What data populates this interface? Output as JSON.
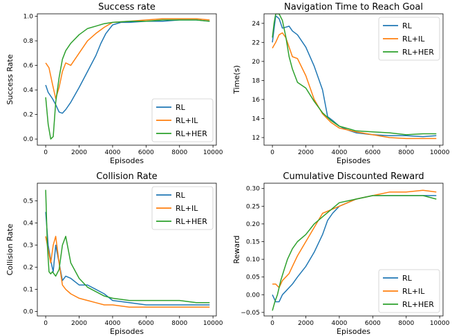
{
  "colors": {
    "RL": "#1f77b4",
    "RL+IL": "#ff7f0e",
    "RL+HER": "#2ca02c"
  },
  "chart_data": [
    {
      "type": "line",
      "title": "Success rate",
      "xlabel": "Episodes",
      "ylabel": "Success Rate",
      "xlim": [
        -500,
        10200
      ],
      "ylim": [
        -0.05,
        1.02
      ],
      "xticks": [
        0,
        2000,
        4000,
        6000,
        8000,
        10000
      ],
      "yticks": [
        0.0,
        0.2,
        0.4,
        0.6,
        0.8,
        1.0
      ],
      "ytick_labels": [
        "0.0",
        "0.2",
        "0.4",
        "0.6",
        "0.8",
        "1.0"
      ],
      "legend_position": "lower-right",
      "series": [
        {
          "name": "RL",
          "x": [
            0,
            150,
            400,
            600,
            800,
            1000,
            1200,
            1500,
            2000,
            2500,
            3000,
            3300,
            3600,
            4000,
            4500,
            5000,
            6000,
            7000,
            8000,
            9000,
            9800
          ],
          "y": [
            0.44,
            0.38,
            0.33,
            0.28,
            0.22,
            0.21,
            0.24,
            0.3,
            0.42,
            0.55,
            0.68,
            0.78,
            0.86,
            0.93,
            0.95,
            0.95,
            0.96,
            0.96,
            0.97,
            0.97,
            0.96
          ]
        },
        {
          "name": "RL+IL",
          "x": [
            0,
            200,
            400,
            600,
            800,
            1000,
            1200,
            1500,
            2000,
            2500,
            3000,
            3500,
            4000,
            5000,
            6000,
            7000,
            8000,
            9000,
            9800
          ],
          "y": [
            0.62,
            0.58,
            0.45,
            0.33,
            0.42,
            0.55,
            0.62,
            0.6,
            0.7,
            0.8,
            0.86,
            0.91,
            0.95,
            0.96,
            0.97,
            0.98,
            0.98,
            0.98,
            0.97
          ]
        },
        {
          "name": "RL+HER",
          "x": [
            0,
            150,
            300,
            450,
            600,
            800,
            1000,
            1200,
            1500,
            2000,
            2500,
            3000,
            3500,
            4000,
            5000,
            6000,
            7000,
            8000,
            9000,
            9800
          ],
          "y": [
            0.34,
            0.12,
            0.0,
            0.02,
            0.3,
            0.5,
            0.65,
            0.72,
            0.78,
            0.85,
            0.9,
            0.92,
            0.94,
            0.95,
            0.96,
            0.96,
            0.97,
            0.97,
            0.97,
            0.96
          ]
        }
      ]
    },
    {
      "type": "line",
      "title": "Navigation Time to Reach Goal",
      "xlabel": "Episodes",
      "ylabel": "Time(s)",
      "xlim": [
        -500,
        10200
      ],
      "ylim": [
        11.2,
        25.0
      ],
      "xticks": [
        0,
        2000,
        4000,
        6000,
        8000,
        10000
      ],
      "yticks": [
        12,
        14,
        16,
        18,
        20,
        22,
        24
      ],
      "ytick_labels": [
        "12",
        "14",
        "16",
        "18",
        "20",
        "22",
        "24"
      ],
      "legend_position": "upper-right",
      "series": [
        {
          "name": "RL",
          "x": [
            0,
            200,
            400,
            600,
            800,
            1000,
            1200,
            1500,
            2000,
            2500,
            3000,
            3300,
            3600,
            4000,
            4500,
            5000,
            6000,
            7000,
            8000,
            9000,
            9800
          ],
          "y": [
            22.0,
            24.8,
            24.5,
            23.5,
            23.6,
            23.7,
            23.2,
            22.8,
            21.5,
            19.5,
            17.0,
            14.2,
            13.8,
            13.2,
            12.8,
            12.5,
            12.3,
            12.2,
            12.2,
            12.1,
            12.2
          ]
        },
        {
          "name": "RL+IL",
          "x": [
            0,
            200,
            400,
            600,
            800,
            1000,
            1200,
            1500,
            2000,
            2500,
            3000,
            3500,
            4000,
            5000,
            6000,
            7000,
            8000,
            9000,
            9800
          ],
          "y": [
            21.4,
            22.0,
            22.8,
            23.0,
            22.5,
            21.5,
            20.5,
            20.3,
            18.5,
            16.0,
            14.5,
            13.6,
            13.0,
            12.6,
            12.3,
            12.0,
            11.9,
            11.9,
            11.9
          ]
        },
        {
          "name": "RL+HER",
          "x": [
            0,
            100,
            200,
            400,
            600,
            800,
            1000,
            1200,
            1500,
            2000,
            2500,
            3000,
            3500,
            4000,
            5000,
            6000,
            7000,
            8000,
            9000,
            9800
          ],
          "y": [
            22.5,
            24.0,
            25.0,
            25.0,
            24.3,
            22.6,
            20.5,
            19.2,
            17.8,
            17.2,
            15.8,
            14.6,
            13.8,
            13.2,
            12.7,
            12.6,
            12.5,
            12.3,
            12.4,
            12.4
          ]
        }
      ]
    },
    {
      "type": "line",
      "title": "Collision Rate",
      "xlabel": "Episodes",
      "ylabel": "Collision Rate",
      "xlim": [
        -500,
        10200
      ],
      "ylim": [
        -0.02,
        0.58
      ],
      "xticks": [
        0,
        2000,
        4000,
        6000,
        8000,
        10000
      ],
      "yticks": [
        0.0,
        0.1,
        0.2,
        0.3,
        0.4,
        0.5
      ],
      "ytick_labels": [
        "0.0",
        "0.1",
        "0.2",
        "0.3",
        "0.4",
        "0.5"
      ],
      "legend_position": "upper-right",
      "series": [
        {
          "name": "RL",
          "x": [
            0,
            150,
            300,
            450,
            600,
            800,
            1000,
            1200,
            1500,
            2000,
            2500,
            3000,
            3500,
            4000,
            5000,
            6000,
            7000,
            8000,
            9000,
            9800
          ],
          "y": [
            0.45,
            0.3,
            0.23,
            0.18,
            0.3,
            0.22,
            0.14,
            0.16,
            0.15,
            0.12,
            0.12,
            0.1,
            0.08,
            0.05,
            0.04,
            0.03,
            0.03,
            0.03,
            0.03,
            0.03
          ]
        },
        {
          "name": "RL+IL",
          "x": [
            0,
            150,
            300,
            450,
            600,
            800,
            1000,
            1200,
            1500,
            2000,
            2500,
            3000,
            3500,
            4000,
            5000,
            6000,
            7000,
            8000,
            9000,
            9800
          ],
          "y": [
            0.34,
            0.28,
            0.22,
            0.3,
            0.34,
            0.22,
            0.12,
            0.1,
            0.08,
            0.06,
            0.05,
            0.04,
            0.03,
            0.03,
            0.02,
            0.02,
            0.02,
            0.02,
            0.02,
            0.02
          ]
        },
        {
          "name": "RL+HER",
          "x": [
            0,
            100,
            200,
            300,
            400,
            600,
            800,
            1000,
            1200,
            1500,
            2000,
            2500,
            3000,
            3500,
            4000,
            5000,
            6000,
            7000,
            8000,
            9000,
            9800
          ],
          "y": [
            0.55,
            0.3,
            0.18,
            0.17,
            0.18,
            0.16,
            0.19,
            0.3,
            0.34,
            0.22,
            0.15,
            0.11,
            0.09,
            0.07,
            0.06,
            0.05,
            0.05,
            0.05,
            0.05,
            0.04,
            0.04
          ]
        }
      ]
    },
    {
      "type": "line",
      "title": "Cumulative Discounted Reward",
      "xlabel": "Episodes",
      "ylabel": "Reward",
      "xlim": [
        -500,
        10200
      ],
      "ylim": [
        -0.06,
        0.315
      ],
      "xticks": [
        0,
        2000,
        4000,
        6000,
        8000,
        10000
      ],
      "yticks": [
        -0.05,
        0.0,
        0.05,
        0.1,
        0.15,
        0.2,
        0.25,
        0.3
      ],
      "ytick_labels": [
        "−0.05",
        "0.00",
        "0.05",
        "0.10",
        "0.15",
        "0.20",
        "0.25",
        "0.30"
      ],
      "legend_position": "lower-right",
      "series": [
        {
          "name": "RL",
          "x": [
            0,
            200,
            400,
            600,
            800,
            1000,
            1200,
            1500,
            2000,
            2500,
            3000,
            3300,
            3600,
            4000,
            4500,
            5000,
            6000,
            7000,
            8000,
            9000,
            9800
          ],
          "y": [
            0.0,
            -0.02,
            -0.02,
            0.0,
            0.01,
            0.02,
            0.03,
            0.05,
            0.08,
            0.12,
            0.17,
            0.21,
            0.23,
            0.25,
            0.26,
            0.27,
            0.28,
            0.28,
            0.28,
            0.28,
            0.28
          ]
        },
        {
          "name": "RL+IL",
          "x": [
            0,
            200,
            400,
            600,
            800,
            1000,
            1200,
            1500,
            2000,
            2500,
            3000,
            3500,
            4000,
            5000,
            6000,
            7000,
            8000,
            9000,
            9800
          ],
          "y": [
            0.03,
            0.03,
            0.02,
            0.04,
            0.05,
            0.06,
            0.08,
            0.11,
            0.15,
            0.19,
            0.23,
            0.24,
            0.25,
            0.27,
            0.28,
            0.29,
            0.29,
            0.295,
            0.29
          ]
        },
        {
          "name": "RL+HER",
          "x": [
            0,
            150,
            300,
            500,
            700,
            900,
            1200,
            1500,
            2000,
            2500,
            3000,
            3500,
            4000,
            5000,
            6000,
            7000,
            8000,
            9000,
            9800
          ],
          "y": [
            -0.045,
            -0.02,
            0.0,
            0.04,
            0.07,
            0.1,
            0.13,
            0.15,
            0.17,
            0.2,
            0.22,
            0.24,
            0.26,
            0.27,
            0.28,
            0.28,
            0.28,
            0.28,
            0.27
          ]
        }
      ]
    }
  ]
}
